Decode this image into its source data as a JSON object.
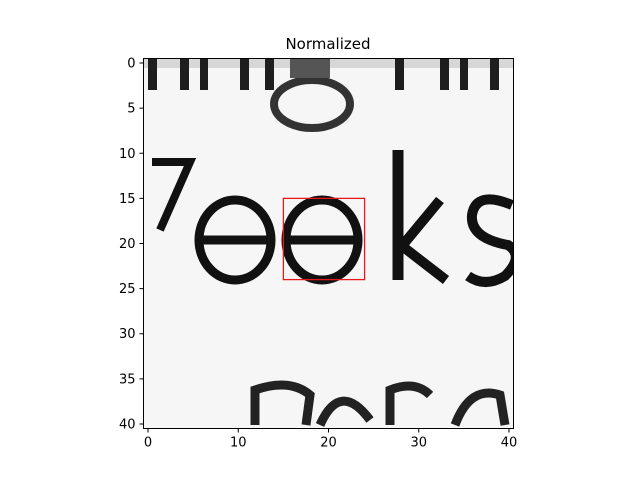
{
  "chart_data": {
    "type": "heatmap",
    "title": "Normalized",
    "colormap": "gray",
    "image_size": [
      41,
      41
    ],
    "xlim": [
      -0.5,
      40.5
    ],
    "ylim": [
      40.5,
      -0.5
    ],
    "x_ticks": [
      0,
      10,
      20,
      30,
      40
    ],
    "y_ticks": [
      0,
      5,
      10,
      15,
      20,
      25,
      30,
      35,
      40
    ],
    "x_tick_labels": [
      "0",
      "10",
      "20",
      "30",
      "40"
    ],
    "y_tick_labels": [
      "0",
      "5",
      "10",
      "15",
      "20",
      "25",
      "30",
      "35",
      "40"
    ],
    "image_content": "grayscale crop of printed text showing letters 'eeks' with partial text rows above and below",
    "highlight_box": {
      "x0": 15,
      "y0": 15,
      "x1": 24,
      "y1": 24,
      "color": "#e31a1c"
    },
    "grid": false,
    "legend": "none"
  }
}
